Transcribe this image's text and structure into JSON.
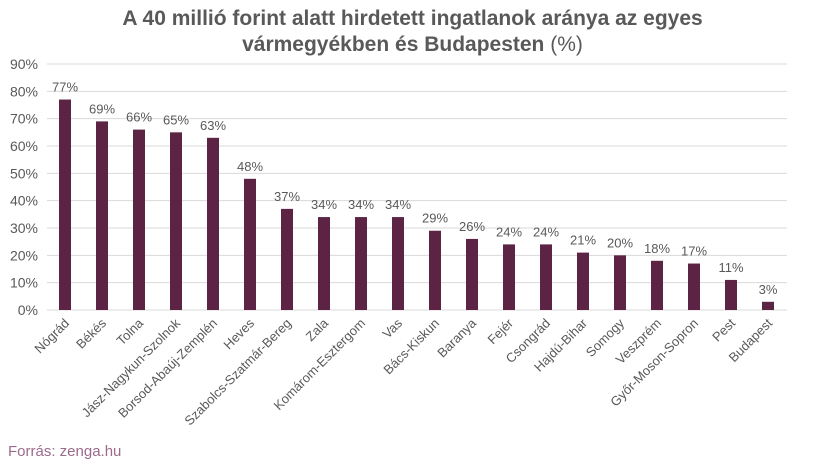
{
  "title": {
    "line1": "A 40 millió forint alatt hirdetett ingatlanok aránya az egyes",
    "line2_bold": "vármegyékben és Budapesten",
    "line2_light": " (%)"
  },
  "source": "Forrás: zenga.hu",
  "colors": {
    "bar": "#5c2344",
    "grid": "#d9d9d9",
    "axis_text": "#595959",
    "source_text": "#9c6b8c"
  },
  "chart_data": {
    "type": "bar",
    "title": "A 40 millió forint alatt hirdetett ingatlanok aránya az egyes vármegyékben és Budapesten (%)",
    "xlabel": "",
    "ylabel": "",
    "ylim": [
      0,
      90
    ],
    "yticks": [
      "0%",
      "10%",
      "20%",
      "30%",
      "40%",
      "50%",
      "60%",
      "70%",
      "80%",
      "90%"
    ],
    "grid": true,
    "legend": null,
    "categories": [
      "Nógrád",
      "Békés",
      "Tolna",
      "Jász-Nagykun-Szolnok",
      "Borsod-Abaúj-Zemplén",
      "Heves",
      "Szabolcs-Szatmár-Bereg",
      "Zala",
      "Komárom-Esztergom",
      "Vas",
      "Bács-Kiskun",
      "Baranya",
      "Fejér",
      "Csongrád",
      "Hajdú-Bihar",
      "Somogy",
      "Veszprém",
      "Győr-Moson-Sopron",
      "Pest",
      "Budapest"
    ],
    "values": [
      77,
      69,
      66,
      65,
      63,
      48,
      37,
      34,
      34,
      34,
      29,
      26,
      24,
      24,
      21,
      20,
      18,
      17,
      11,
      3
    ],
    "data_labels": [
      "77%",
      "69%",
      "66%",
      "65%",
      "63%",
      "48%",
      "37%",
      "34%",
      "34%",
      "34%",
      "29%",
      "26%",
      "24%",
      "24%",
      "21%",
      "20%",
      "18%",
      "17%",
      "11%",
      "3%"
    ]
  }
}
